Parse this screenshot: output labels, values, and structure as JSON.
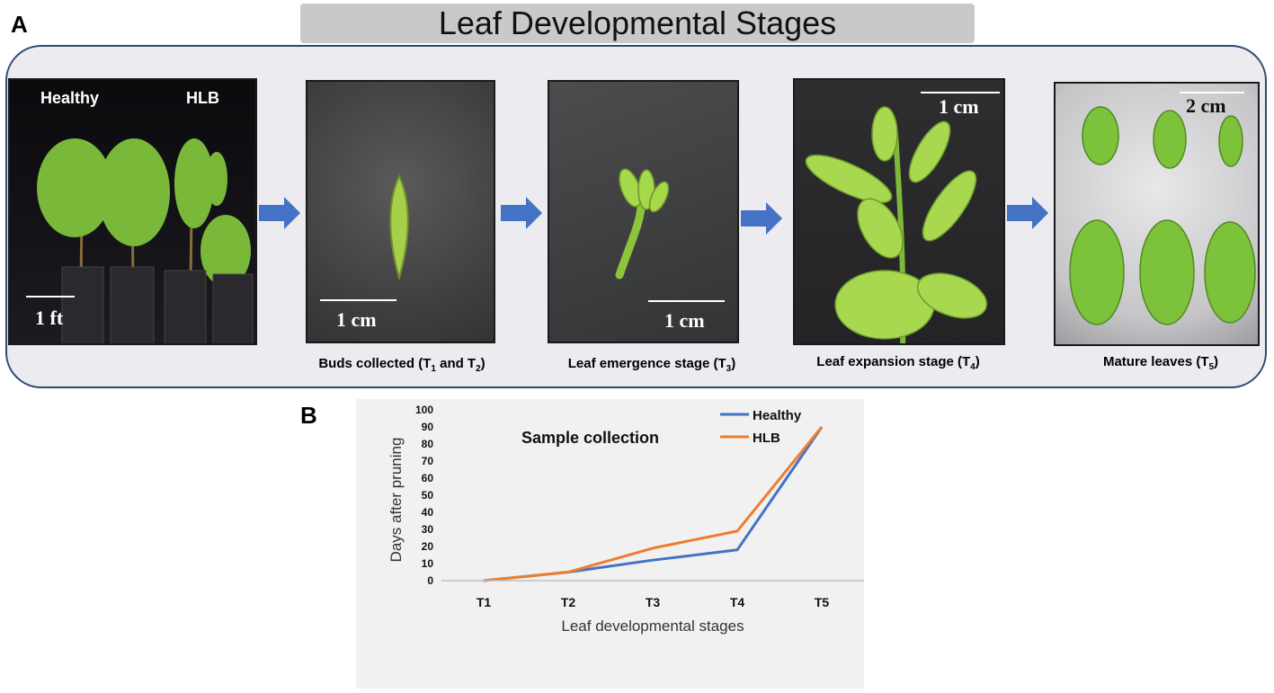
{
  "figure": {
    "panel_a_letter": "A",
    "panel_b_letter": "B",
    "title": "Leaf Developmental Stages"
  },
  "photos": {
    "plants": {
      "label_left": "Healthy",
      "label_right": "HLB",
      "scale": "1 ft"
    },
    "buds": {
      "scale": "1 cm",
      "caption_pre": "Buds collected (T",
      "sub1": "1",
      "caption_mid": " and T",
      "sub2": "2",
      "caption_post": ")"
    },
    "emergence": {
      "scale": "1 cm",
      "caption_pre": "Leaf emergence stage (T",
      "sub": "3",
      "caption_post": ")"
    },
    "expansion": {
      "scale": "1 cm",
      "caption_pre": "Leaf expansion stage (T",
      "sub": "4",
      "caption_post": ")"
    },
    "mature": {
      "scale": "2 cm",
      "caption_pre": "Mature leaves (T",
      "sub": "5",
      "caption_post": ")"
    }
  },
  "colors": {
    "arrow": "#4472c4",
    "healthy": "#4472c4",
    "hlb": "#ed7d31",
    "frame_border": "#2e4a73"
  },
  "chart_data": {
    "type": "line",
    "title": "Sample collection",
    "xlabel": "Leaf developmental stages",
    "ylabel": "Days after pruning",
    "categories": [
      "T1",
      "T2",
      "T3",
      "T4",
      "T5"
    ],
    "ylim": [
      0,
      100
    ],
    "yticks": [
      0,
      10,
      20,
      30,
      40,
      50,
      60,
      70,
      80,
      90,
      100
    ],
    "grid": false,
    "legend_position": "top-right",
    "series": [
      {
        "name": "Healthy",
        "color": "#4472c4",
        "values": [
          0,
          5,
          12,
          18,
          90
        ]
      },
      {
        "name": "HLB",
        "color": "#ed7d31",
        "values": [
          0,
          5,
          19,
          29,
          90
        ]
      }
    ]
  }
}
